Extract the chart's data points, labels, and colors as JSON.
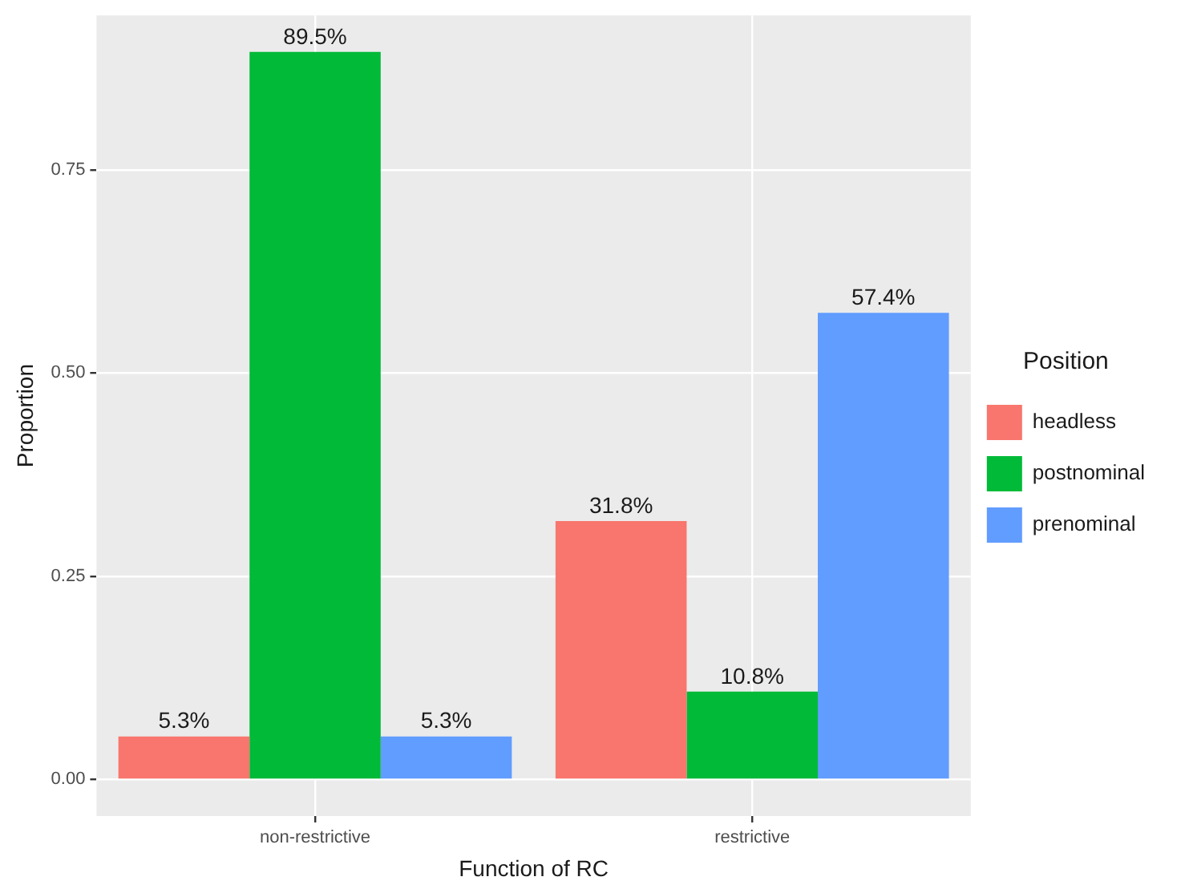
{
  "chart_data": {
    "type": "bar",
    "xlabel": "Function of RC",
    "ylabel": "Proportion",
    "legend_title": "Position",
    "legend": "right",
    "grid": true,
    "categories": [
      "non-restrictive",
      "restrictive"
    ],
    "ylim": [
      -0.045,
      0.94
    ],
    "yticks": [
      {
        "value": 0,
        "label": "0.00"
      },
      {
        "value": 0.25,
        "label": "0.25"
      },
      {
        "value": 0.5,
        "label": "0.50"
      },
      {
        "value": 0.75,
        "label": "0.75"
      }
    ],
    "series": [
      {
        "name": "headless",
        "color": "#f8766d",
        "values": [
          0.053,
          0.318
        ],
        "value_labels": [
          "5.3%",
          "31.8%"
        ]
      },
      {
        "name": "postnominal",
        "color": "#00ba38",
        "values": [
          0.895,
          0.108
        ],
        "value_labels": [
          "89.5%",
          "10.8%"
        ]
      },
      {
        "name": "prenominal",
        "color": "#619cff",
        "values": [
          0.053,
          0.574
        ],
        "value_labels": [
          "5.3%",
          "57.4%"
        ]
      }
    ]
  }
}
